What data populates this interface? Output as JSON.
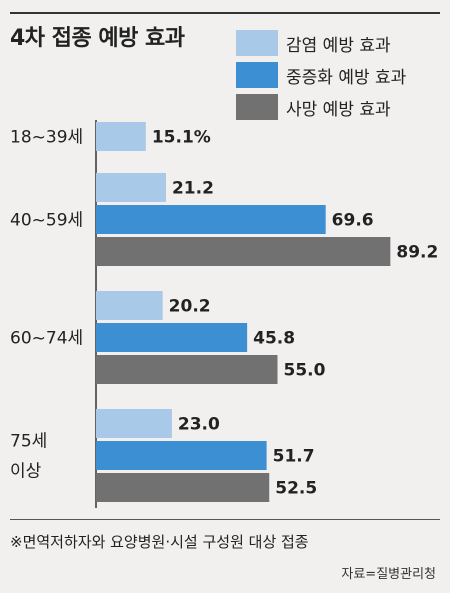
{
  "colors": {
    "infection": "#a9c9e8",
    "severe": "#3d8fd4",
    "death": "#717171",
    "axis": "#333333"
  },
  "chart_data": {
    "type": "bar",
    "orientation": "horizontal",
    "title": "4차 접종 예방 효과",
    "categories": [
      "18~39세",
      "40~59세",
      "60~74세",
      "75세\n이상"
    ],
    "series": [
      {
        "name": "감염 예방 효과",
        "values": [
          15.1,
          21.2,
          20.2,
          23.0
        ],
        "labels": [
          "15.1%",
          "21.2",
          "20.2",
          "23.0"
        ]
      },
      {
        "name": "중증화 예방 효과",
        "values": [
          null,
          69.6,
          45.8,
          51.7
        ],
        "labels": [
          null,
          "69.6",
          "45.8",
          "51.7"
        ]
      },
      {
        "name": "사망 예방 효과",
        "values": [
          null,
          89.2,
          55.0,
          52.5
        ],
        "labels": [
          null,
          "89.2",
          "55.0",
          "52.5"
        ]
      }
    ],
    "xlim": [
      0,
      100
    ],
    "grid": false,
    "legend_position": "top-right"
  },
  "footnote": "※면역저하자와 요양병원·시설 구성원 대상 접종",
  "source": "자료=질병관리청"
}
